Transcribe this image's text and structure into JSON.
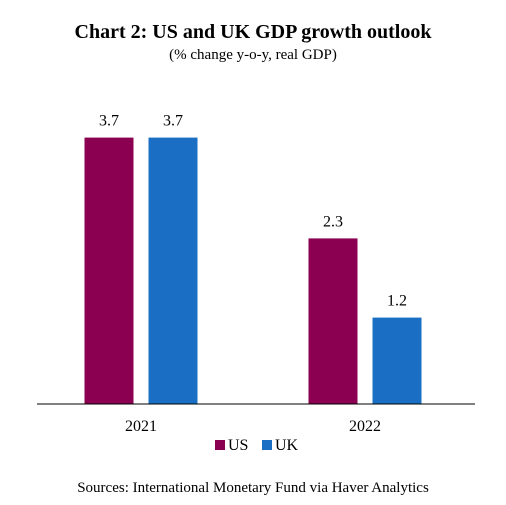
{
  "chart_data": {
    "type": "bar",
    "title": "Chart 2: US and UK GDP growth outlook",
    "subtitle": "(% change y-o-y, real GDP)",
    "categories": [
      "2021",
      "2022"
    ],
    "series": [
      {
        "name": "US",
        "values": [
          3.7,
          2.3
        ],
        "color": "#8B0050"
      },
      {
        "name": "UK",
        "values": [
          3.7,
          1.2
        ],
        "color": "#1A6FC4"
      }
    ],
    "ylim": [
      0,
      4
    ],
    "grid": false,
    "legend_position": "bottom",
    "source": "Sources: International Monetary Fund via Haver Analytics"
  }
}
